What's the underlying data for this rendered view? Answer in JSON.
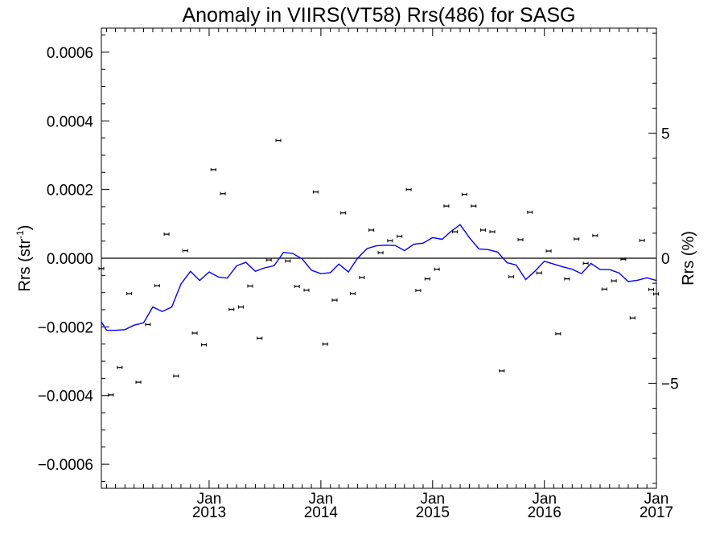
{
  "chart_data": {
    "type": "scatter",
    "title": "Anomaly in VIIRS(VT58) Rrs(486) for SASG",
    "ylabel_left": "Rrs (str",
    "ylabel_left_sup": "-1",
    "ylabel_left_close": ")",
    "ylabel_right": "Rrs (%)",
    "xlabel": "",
    "xlim": [
      "2012-01-15",
      "2017-01-01"
    ],
    "ylim_left": [
      -0.00067,
      0.00067
    ],
    "ylim_right": [
      -9.2,
      9.2
    ],
    "y_ticks_left": [
      {
        "value": -0.0006,
        "label": "−0.0006"
      },
      {
        "value": -0.0004,
        "label": "−0.0004"
      },
      {
        "value": -0.0002,
        "label": "−0.0002"
      },
      {
        "value": 0,
        "label": "0.0000"
      },
      {
        "value": 0.0002,
        "label": "0.0002"
      },
      {
        "value": 0.0004,
        "label": "0.0004"
      },
      {
        "value": 0.0006,
        "label": "0.0006"
      }
    ],
    "y_ticks_right": [
      {
        "value": -5,
        "label": "−5"
      },
      {
        "value": 0,
        "label": "0"
      },
      {
        "value": 5,
        "label": "5"
      }
    ],
    "x_ticks": [
      {
        "date": "2013-01-01",
        "month": "Jan",
        "year": "2013"
      },
      {
        "date": "2014-01-01",
        "month": "Jan",
        "year": "2014"
      },
      {
        "date": "2015-01-01",
        "month": "Jan",
        "year": "2015"
      },
      {
        "date": "2016-01-01",
        "month": "Jan",
        "year": "2016"
      },
      {
        "date": "2017-01-01",
        "month": "Jan",
        "year": "2017"
      }
    ],
    "zero_line": 0,
    "series": [
      {
        "type": "scatter_errorbar",
        "color": "#000000",
        "axis": "left",
        "points": [
          [
            "2012-01-15",
            -3e-05
          ],
          [
            "2012-02-15",
            -0.000398
          ],
          [
            "2012-03-15",
            -0.000318
          ],
          [
            "2012-04-15",
            -0.000103
          ],
          [
            "2012-05-15",
            -0.000361
          ],
          [
            "2012-06-15",
            -0.000193
          ],
          [
            "2012-07-15",
            -8e-05
          ],
          [
            "2012-08-15",
            7e-05
          ],
          [
            "2012-09-15",
            -0.000343
          ],
          [
            "2012-10-15",
            2.2e-05
          ],
          [
            "2012-11-15",
            -0.000218
          ],
          [
            "2012-12-15",
            -0.000252
          ],
          [
            "2013-01-15",
            0.000258
          ],
          [
            "2013-02-15",
            0.000188
          ],
          [
            "2013-03-15",
            -0.000149
          ],
          [
            "2013-04-15",
            -0.000142
          ],
          [
            "2013-05-15",
            -8.1e-05
          ],
          [
            "2013-06-15",
            -0.000233
          ],
          [
            "2013-07-15",
            -5e-06
          ],
          [
            "2013-08-15",
            0.000343
          ],
          [
            "2013-09-15",
            -8e-06
          ],
          [
            "2013-10-15",
            -8.2e-05
          ],
          [
            "2013-11-15",
            -9.3e-05
          ],
          [
            "2013-12-15",
            0.000193
          ],
          [
            "2014-01-15",
            -0.00025
          ],
          [
            "2014-02-15",
            -0.000122
          ],
          [
            "2014-03-15",
            0.000132
          ],
          [
            "2014-04-15",
            -0.000103
          ],
          [
            "2014-05-15",
            -5.6e-05
          ],
          [
            "2014-06-15",
            8.2e-05
          ],
          [
            "2014-07-15",
            1.6e-05
          ],
          [
            "2014-08-15",
            5.1e-05
          ],
          [
            "2014-09-15",
            6.4e-05
          ],
          [
            "2014-10-15",
            0.0002
          ],
          [
            "2014-11-15",
            -9.4e-05
          ],
          [
            "2014-12-15",
            -6e-05
          ],
          [
            "2015-01-15",
            -3.2e-05
          ],
          [
            "2015-02-15",
            0.000152
          ],
          [
            "2015-03-15",
            7.7e-05
          ],
          [
            "2015-04-15",
            0.000186
          ],
          [
            "2015-05-15",
            0.000152
          ],
          [
            "2015-06-15",
            8.2e-05
          ],
          [
            "2015-07-15",
            7.7e-05
          ],
          [
            "2015-08-15",
            -0.000328
          ],
          [
            "2015-09-15",
            -5.4e-05
          ],
          [
            "2015-10-15",
            5.4e-05
          ],
          [
            "2015-11-15",
            0.000134
          ],
          [
            "2015-12-15",
            -4.3e-05
          ],
          [
            "2016-01-15",
            2.1e-05
          ],
          [
            "2016-02-15",
            -0.00022
          ],
          [
            "2016-03-15",
            -6e-05
          ],
          [
            "2016-04-15",
            5.6e-05
          ],
          [
            "2016-05-15",
            -1.5e-05
          ],
          [
            "2016-06-15",
            6.6e-05
          ],
          [
            "2016-07-15",
            -9e-05
          ],
          [
            "2016-08-15",
            -6.6e-05
          ],
          [
            "2016-09-15",
            -3e-06
          ],
          [
            "2016-10-15",
            -0.000174
          ],
          [
            "2016-11-15",
            5.2e-05
          ],
          [
            "2016-12-15",
            -9.1e-05
          ],
          [
            "2016-12-31",
            -0.000104
          ]
        ]
      },
      {
        "type": "line",
        "color": "#0000ff",
        "axis": "left",
        "points": [
          [
            "2012-01-15",
            -0.000185
          ],
          [
            "2012-02-01",
            -0.00021
          ],
          [
            "2012-03-01",
            -0.00021
          ],
          [
            "2012-04-01",
            -0.000208
          ],
          [
            "2012-05-01",
            -0.000195
          ],
          [
            "2012-06-01",
            -0.000188
          ],
          [
            "2012-07-01",
            -0.000142
          ],
          [
            "2012-08-01",
            -0.000155
          ],
          [
            "2012-09-01",
            -0.000142
          ],
          [
            "2012-10-01",
            -7.5e-05
          ],
          [
            "2012-11-01",
            -3.8e-05
          ],
          [
            "2012-12-01",
            -6.5e-05
          ],
          [
            "2013-01-01",
            -4e-05
          ],
          [
            "2013-02-01",
            -5.5e-05
          ],
          [
            "2013-03-01",
            -5.8e-05
          ],
          [
            "2013-04-01",
            -2.2e-05
          ],
          [
            "2013-05-01",
            -1.2e-05
          ],
          [
            "2013-06-01",
            -3.8e-05
          ],
          [
            "2013-07-01",
            -2.8e-05
          ],
          [
            "2013-08-01",
            -2.2e-05
          ],
          [
            "2013-09-01",
            1.7e-05
          ],
          [
            "2013-10-01",
            1.4e-05
          ],
          [
            "2013-11-01",
            -2e-06
          ],
          [
            "2013-12-01",
            -3.5e-05
          ],
          [
            "2014-01-01",
            -4.5e-05
          ],
          [
            "2014-02-01",
            -4.2e-05
          ],
          [
            "2014-03-01",
            -1.7e-05
          ],
          [
            "2014-04-01",
            -4e-05
          ],
          [
            "2014-05-01",
            0.0
          ],
          [
            "2014-06-01",
            2.8e-05
          ],
          [
            "2014-07-01",
            3.6e-05
          ],
          [
            "2014-08-01",
            3.8e-05
          ],
          [
            "2014-09-01",
            3.7e-05
          ],
          [
            "2014-10-01",
            2.2e-05
          ],
          [
            "2014-11-01",
            4.1e-05
          ],
          [
            "2014-12-01",
            4.4e-05
          ],
          [
            "2015-01-01",
            6e-05
          ],
          [
            "2015-02-01",
            5.5e-05
          ],
          [
            "2015-03-01",
            7.7e-05
          ],
          [
            "2015-04-01",
            9.8e-05
          ],
          [
            "2015-05-01",
            6e-05
          ],
          [
            "2015-06-01",
            2.7e-05
          ],
          [
            "2015-07-01",
            2.5e-05
          ],
          [
            "2015-08-01",
            1.8e-05
          ],
          [
            "2015-09-01",
            -1.3e-05
          ],
          [
            "2015-10-01",
            -2e-05
          ],
          [
            "2015-11-01",
            -6.2e-05
          ],
          [
            "2015-12-01",
            -3.8e-05
          ],
          [
            "2016-01-01",
            -9e-06
          ],
          [
            "2016-02-01",
            -1.7e-05
          ],
          [
            "2016-03-01",
            -2.5e-05
          ],
          [
            "2016-04-01",
            -3.2e-05
          ],
          [
            "2016-05-01",
            -4.5e-05
          ],
          [
            "2016-06-01",
            -1.5e-05
          ],
          [
            "2016-07-01",
            -3.3e-05
          ],
          [
            "2016-08-01",
            -3.3e-05
          ],
          [
            "2016-09-01",
            -4.3e-05
          ],
          [
            "2016-10-01",
            -6.8e-05
          ],
          [
            "2016-11-01",
            -6.4e-05
          ],
          [
            "2016-12-01",
            -5.7e-05
          ],
          [
            "2017-01-01",
            -6.5e-05
          ]
        ]
      }
    ]
  }
}
